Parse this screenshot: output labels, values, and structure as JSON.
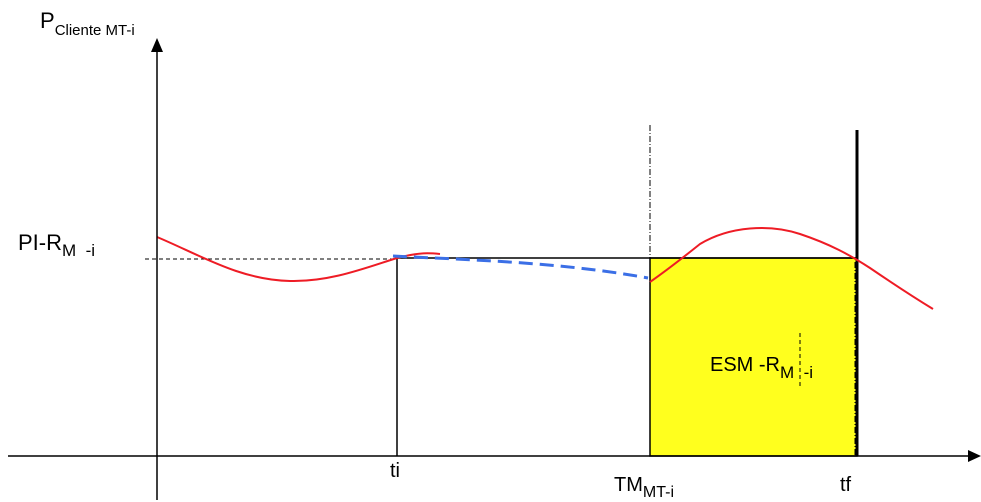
{
  "y_axis_label": {
    "main": "P",
    "sub": "Cliente MT-i"
  },
  "level_label": {
    "main": "PI-R",
    "sub": "M  -i"
  },
  "x_ticks": {
    "ti": "ti",
    "tm": {
      "main": "TM",
      "sub": "MT-i"
    },
    "tf": "tf"
  },
  "area_label": {
    "main": "ESM -R",
    "sub": "M  -i"
  },
  "colors": {
    "client_curve": "#ee1c25",
    "projection": "#3b6fe6",
    "energy_area": "#ffff1e",
    "axes": "#000000"
  }
}
